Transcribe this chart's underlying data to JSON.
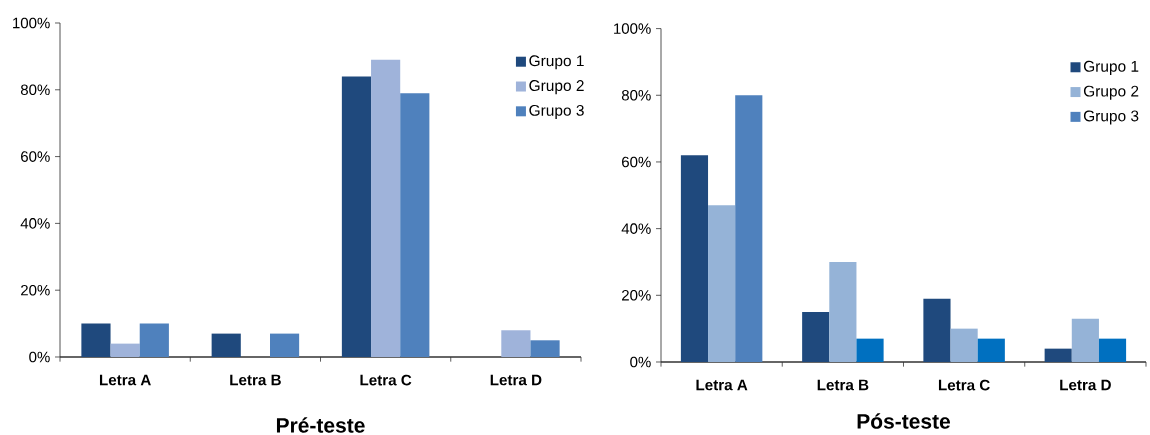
{
  "chart_data": [
    {
      "type": "bar",
      "xlabel": "Pré-teste",
      "categories": [
        "Letra A",
        "Letra B",
        "Letra C",
        "Letra D"
      ],
      "series": [
        {
          "name": "Grupo 1",
          "color": "#1f497d",
          "values": [
            10,
            7,
            84,
            0
          ]
        },
        {
          "name": "Grupo 2",
          "color": "#9fb3da",
          "values": [
            4,
            0,
            89,
            8
          ]
        },
        {
          "name": "Grupo 3",
          "color": "#4f81bd",
          "values": [
            10,
            7,
            79,
            5
          ]
        }
      ],
      "ylim": [
        0,
        100
      ],
      "yticks": [
        {
          "value": 0,
          "label": "0%"
        },
        {
          "value": 20,
          "label": "20%"
        },
        {
          "value": 40,
          "label": "40%"
        },
        {
          "value": 60,
          "label": "60%"
        },
        {
          "value": 80,
          "label": "80%"
        },
        {
          "value": 100,
          "label": "100%"
        }
      ],
      "legend": "top right"
    },
    {
      "type": "bar",
      "xlabel": "Pós-teste",
      "categories": [
        "Letra A",
        "Letra B",
        "Letra C",
        "Letra D"
      ],
      "series": [
        {
          "name": "Grupo 1",
          "color": "#1f497d",
          "values": [
            62,
            15,
            19,
            4
          ]
        },
        {
          "name": "Grupo 2",
          "color": "#95b3d7",
          "values": [
            47,
            30,
            10,
            13
          ]
        },
        {
          "name": "Grupo 3",
          "color": "#4f81bd",
          "colors": [
            "#4f81bd",
            "#0070c0",
            "#0070c0",
            "#0070c0"
          ],
          "values": [
            80,
            7,
            7,
            7
          ]
        }
      ],
      "ylim": [
        0,
        100
      ],
      "yticks": [
        {
          "value": 0,
          "label": "0%"
        },
        {
          "value": 20,
          "label": "20%"
        },
        {
          "value": 40,
          "label": "40%"
        },
        {
          "value": 60,
          "label": "60%"
        },
        {
          "value": 80,
          "label": "80%"
        },
        {
          "value": 100,
          "label": "100%"
        }
      ],
      "legend": "top right"
    }
  ]
}
